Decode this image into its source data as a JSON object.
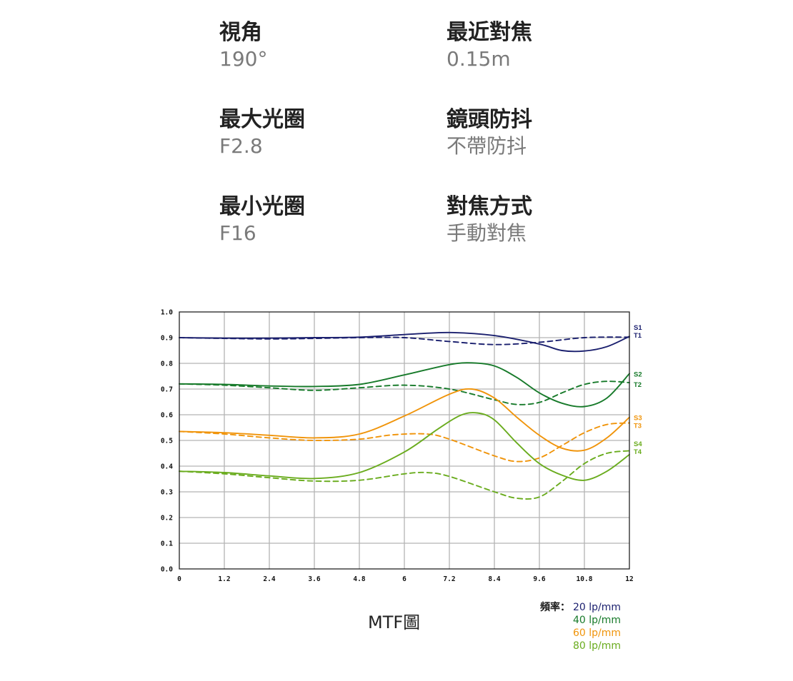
{
  "specs": [
    {
      "label": "視角",
      "value": "190°"
    },
    {
      "label": "最近對焦",
      "value": "0.15m"
    },
    {
      "label": "最大光圈",
      "value": "F2.8"
    },
    {
      "label": "鏡頭防抖",
      "value": "不帶防抖"
    },
    {
      "label": "最小光圈",
      "value": "F16"
    },
    {
      "label": "對焦方式",
      "value": "手動對焦"
    }
  ],
  "caption": "MTF圖",
  "legend": {
    "title": "頻率：",
    "entries": [
      "20 lp/mm",
      "40 lp/mm",
      "60 lp/mm",
      "80 lp/mm"
    ]
  },
  "colors": {
    "s20": "#1a1f6e",
    "s40": "#177a2a",
    "s60": "#f0940a",
    "s80": "#6aac1e",
    "grid": "#b4b4b4"
  },
  "chart_data": {
    "type": "line",
    "xlim": [
      0,
      12
    ],
    "ylim": [
      0,
      1.0
    ],
    "x_ticks": [
      "0",
      "1.2",
      "2.4",
      "3.6",
      "4.8",
      "6",
      "7.2",
      "8.4",
      "9.6",
      "10.8",
      "12"
    ],
    "y_ticks": [
      "0.0",
      "0.1",
      "0.2",
      "0.3",
      "0.4",
      "0.5",
      "0.6",
      "0.7",
      "0.8",
      "0.9",
      "1.0"
    ],
    "grid": true,
    "series": [
      {
        "name": "S1",
        "style": "solid",
        "color": "#1a1f6e",
        "x": [
          0,
          1.2,
          2.4,
          3.6,
          4.8,
          6,
          7.2,
          8.4,
          9.6,
          10.2,
          10.8,
          11.4,
          12
        ],
        "y": [
          0.9,
          0.898,
          0.898,
          0.9,
          0.902,
          0.912,
          0.92,
          0.908,
          0.875,
          0.85,
          0.848,
          0.865,
          0.905
        ]
      },
      {
        "name": "T1",
        "style": "dashed",
        "color": "#1a1f6e",
        "x": [
          0,
          1.2,
          2.4,
          3.6,
          4.8,
          6,
          7.2,
          8.4,
          9.6,
          10.8,
          12
        ],
        "y": [
          0.9,
          0.897,
          0.895,
          0.897,
          0.9,
          0.9,
          0.885,
          0.873,
          0.882,
          0.9,
          0.902
        ]
      },
      {
        "name": "S2",
        "style": "solid",
        "color": "#177a2a",
        "x": [
          0,
          1.2,
          2.4,
          3.6,
          4.8,
          6,
          7.2,
          7.8,
          8.4,
          9.0,
          9.6,
          10.2,
          10.8,
          11.4,
          12
        ],
        "y": [
          0.72,
          0.718,
          0.712,
          0.71,
          0.718,
          0.755,
          0.795,
          0.802,
          0.79,
          0.745,
          0.685,
          0.645,
          0.632,
          0.665,
          0.76
        ]
      },
      {
        "name": "T2",
        "style": "dashed",
        "color": "#177a2a",
        "x": [
          0,
          1.2,
          2.4,
          3.6,
          4.8,
          6,
          7.2,
          8.4,
          9.0,
          9.6,
          10.2,
          10.8,
          11.4,
          12
        ],
        "y": [
          0.72,
          0.715,
          0.705,
          0.695,
          0.705,
          0.715,
          0.7,
          0.658,
          0.64,
          0.648,
          0.685,
          0.718,
          0.73,
          0.725
        ]
      },
      {
        "name": "S3",
        "style": "solid",
        "color": "#f0940a",
        "x": [
          0,
          1.2,
          2.4,
          3.6,
          4.8,
          6,
          7.2,
          7.8,
          8.4,
          9.0,
          9.6,
          10.2,
          10.8,
          11.4,
          12
        ],
        "y": [
          0.535,
          0.53,
          0.52,
          0.51,
          0.525,
          0.595,
          0.68,
          0.7,
          0.665,
          0.59,
          0.52,
          0.47,
          0.462,
          0.51,
          0.59
        ]
      },
      {
        "name": "T3",
        "style": "dashed",
        "color": "#f0940a",
        "x": [
          0,
          1.2,
          2.4,
          3.6,
          4.8,
          5.7,
          6.6,
          7.2,
          8.4,
          9.0,
          9.6,
          10.2,
          10.8,
          11.4,
          12
        ],
        "y": [
          0.535,
          0.525,
          0.51,
          0.5,
          0.505,
          0.522,
          0.525,
          0.505,
          0.44,
          0.418,
          0.432,
          0.48,
          0.53,
          0.562,
          0.568
        ]
      },
      {
        "name": "S4",
        "style": "solid",
        "color": "#6aac1e",
        "x": [
          0,
          1.2,
          2.4,
          3.6,
          4.8,
          6,
          6.9,
          7.5,
          7.95,
          8.4,
          9.0,
          9.6,
          10.2,
          10.8,
          11.4,
          12
        ],
        "y": [
          0.38,
          0.375,
          0.362,
          0.352,
          0.375,
          0.455,
          0.545,
          0.598,
          0.607,
          0.58,
          0.49,
          0.41,
          0.365,
          0.345,
          0.38,
          0.445
        ]
      },
      {
        "name": "T4",
        "style": "dashed",
        "color": "#6aac1e",
        "x": [
          0,
          1.2,
          2.4,
          3.6,
          4.8,
          6,
          6.6,
          7.2,
          8.4,
          9.0,
          9.6,
          10.2,
          10.8,
          11.4,
          12
        ],
        "y": [
          0.38,
          0.37,
          0.355,
          0.342,
          0.345,
          0.37,
          0.375,
          0.36,
          0.3,
          0.275,
          0.28,
          0.34,
          0.41,
          0.45,
          0.46
        ]
      }
    ]
  }
}
